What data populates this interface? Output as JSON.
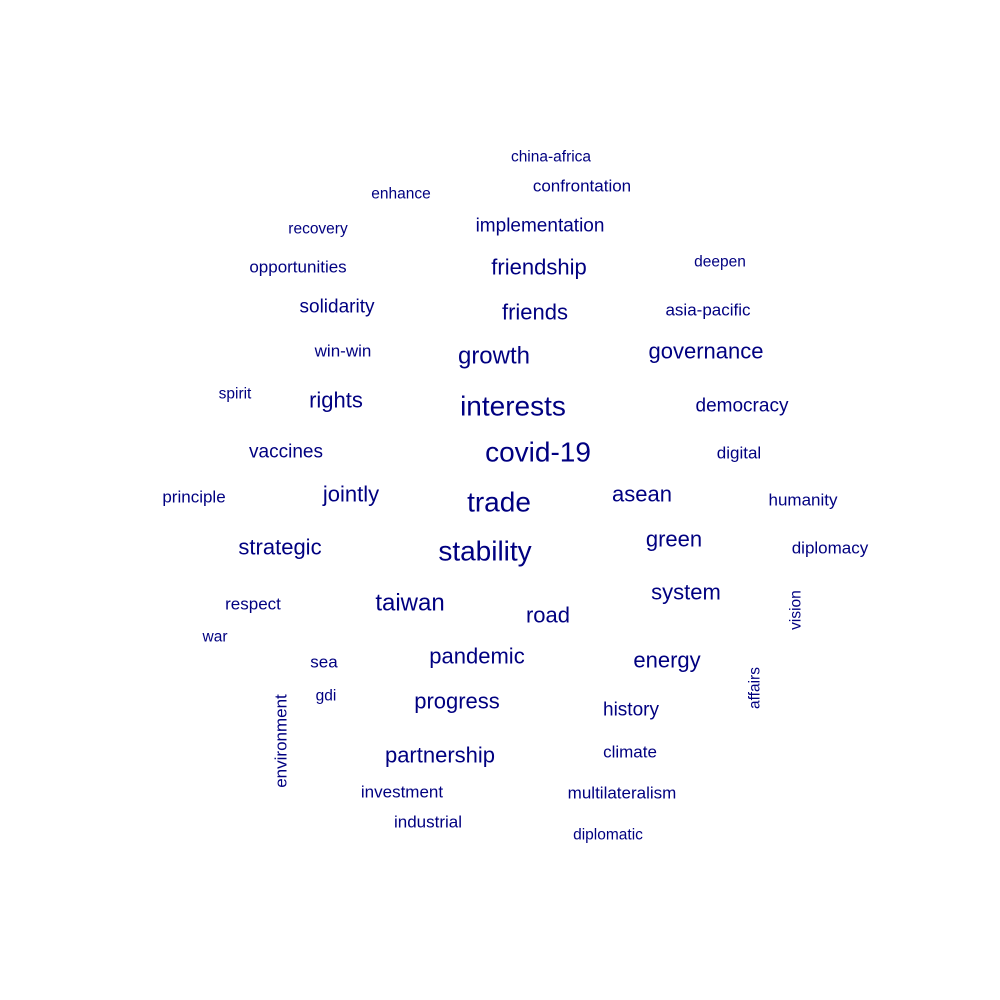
{
  "chart_data": {
    "type": "wordcloud",
    "color": "#000080",
    "words": [
      {
        "text": "china-africa",
        "size": 1
      },
      {
        "text": "confrontation",
        "size": 2
      },
      {
        "text": "enhance",
        "size": 1
      },
      {
        "text": "recovery",
        "size": 1
      },
      {
        "text": "implementation",
        "size": 3
      },
      {
        "text": "opportunities",
        "size": 2
      },
      {
        "text": "friendship",
        "size": 4
      },
      {
        "text": "deepen",
        "size": 1
      },
      {
        "text": "solidarity",
        "size": 3
      },
      {
        "text": "friends",
        "size": 4
      },
      {
        "text": "asia-pacific",
        "size": 2
      },
      {
        "text": "win-win",
        "size": 2
      },
      {
        "text": "growth",
        "size": 5
      },
      {
        "text": "governance",
        "size": 4
      },
      {
        "text": "spirit",
        "size": 1
      },
      {
        "text": "rights",
        "size": 4
      },
      {
        "text": "interests",
        "size": 7
      },
      {
        "text": "democracy",
        "size": 3
      },
      {
        "text": "vaccines",
        "size": 3
      },
      {
        "text": "covid-19",
        "size": 7
      },
      {
        "text": "digital",
        "size": 2
      },
      {
        "text": "principle",
        "size": 2
      },
      {
        "text": "jointly",
        "size": 4
      },
      {
        "text": "trade",
        "size": 7
      },
      {
        "text": "asean",
        "size": 4
      },
      {
        "text": "humanity",
        "size": 2
      },
      {
        "text": "strategic",
        "size": 4
      },
      {
        "text": "stability",
        "size": 7
      },
      {
        "text": "green",
        "size": 4
      },
      {
        "text": "diplomacy",
        "size": 2
      },
      {
        "text": "system",
        "size": 4
      },
      {
        "text": "respect",
        "size": 2
      },
      {
        "text": "taiwan",
        "size": 5
      },
      {
        "text": "road",
        "size": 4
      },
      {
        "text": "vision",
        "size": 1
      },
      {
        "text": "war",
        "size": 1
      },
      {
        "text": "sea",
        "size": 2
      },
      {
        "text": "pandemic",
        "size": 4
      },
      {
        "text": "energy",
        "size": 4
      },
      {
        "text": "affairs",
        "size": 1
      },
      {
        "text": "gdi",
        "size": 1
      },
      {
        "text": "progress",
        "size": 4
      },
      {
        "text": "history",
        "size": 3
      },
      {
        "text": "environment",
        "size": 2
      },
      {
        "text": "partnership",
        "size": 4
      },
      {
        "text": "climate",
        "size": 2
      },
      {
        "text": "investment",
        "size": 2
      },
      {
        "text": "multilateralism",
        "size": 2
      },
      {
        "text": "industrial",
        "size": 2
      },
      {
        "text": "diplomatic",
        "size": 1
      }
    ]
  }
}
